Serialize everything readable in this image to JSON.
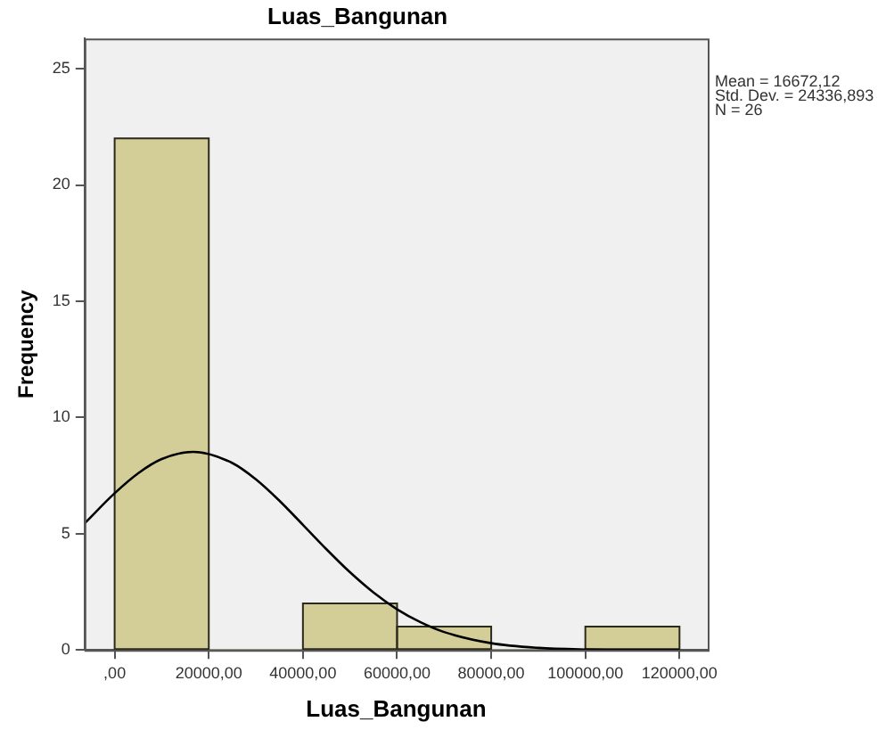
{
  "chart_data": {
    "type": "histogram",
    "title": "Luas_Bangunan",
    "xlabel": "Luas_Bangunan",
    "ylabel": "Frequency",
    "series": [
      {
        "type": "histogram",
        "bins": [
          0,
          20000,
          40000,
          60000,
          80000,
          100000,
          120000
        ],
        "values": [
          22,
          0,
          2,
          1,
          0,
          1
        ],
        "color": "#d3ce97"
      },
      {
        "type": "line",
        "x": [
          -6400,
          0,
          5000,
          10000,
          16672,
          25000,
          30000,
          35000,
          40000,
          45000,
          50000,
          55000,
          60000,
          65000,
          70000,
          80000,
          90000,
          100000,
          110000,
          120000
        ],
        "values": [
          5.44,
          6.74,
          7.6,
          8.21,
          8.52,
          8.04,
          7.34,
          6.42,
          5.38,
          4.33,
          3.34,
          2.47,
          1.75,
          1.19,
          0.77,
          0.29,
          0.09,
          0.02,
          0,
          0
        ],
        "color": "#000000"
      }
    ],
    "xlim": [
      -6400,
      126000
    ],
    "xticks": [
      {
        "value": 0,
        "label": ",00"
      },
      {
        "value": 20000,
        "label": "20000,00"
      },
      {
        "value": 40000,
        "label": "40000,00"
      },
      {
        "value": 60000,
        "label": "60000,00"
      },
      {
        "value": 80000,
        "label": "80000,00"
      },
      {
        "value": 100000,
        "label": "100000,00"
      },
      {
        "value": 120000,
        "label": "120000,00"
      }
    ],
    "ylim": [
      0,
      26.3
    ],
    "yticks": [
      0,
      5,
      10,
      15,
      20,
      25
    ],
    "grid": false,
    "legend": false,
    "marker": "none",
    "annotations": [
      "Mean = 16672,12",
      "Std. Dev. = 24336,893",
      "N = 26"
    ]
  }
}
